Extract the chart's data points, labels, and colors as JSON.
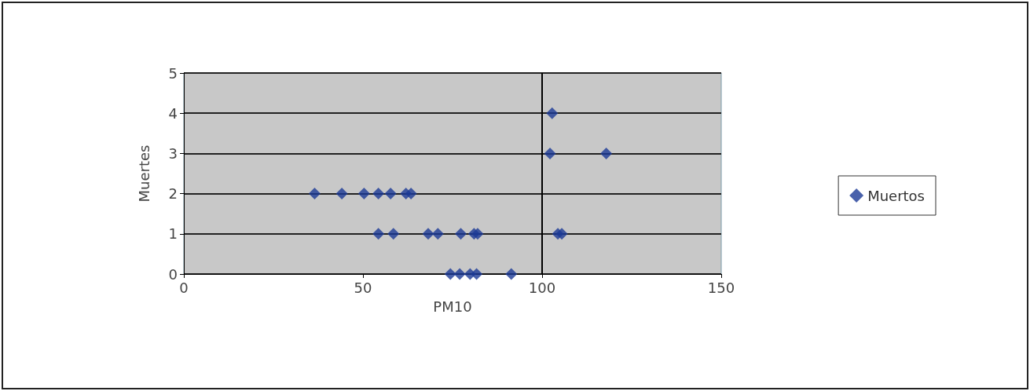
{
  "chart_data": {
    "type": "scatter",
    "xlabel": "PM10",
    "ylabel": "Muertes",
    "series": [
      {
        "name": "Muertos",
        "color": "#1c3a96",
        "x": [
          36.5,
          44.1,
          50.3,
          54.3,
          57.7,
          62.0,
          63.4,
          54.3,
          58.5,
          68.2,
          70.9,
          77.3,
          81.0,
          82.0,
          74.4,
          77.0,
          79.9,
          81.7,
          91.4,
          102.8,
          102.2,
          117.9,
          104.4,
          105.5
        ],
        "values": [
          2,
          2,
          2,
          2,
          2,
          2,
          2,
          1,
          1,
          1,
          1,
          1,
          1,
          1,
          0,
          0,
          0,
          0,
          0,
          4,
          3,
          3,
          1,
          1
        ]
      }
    ],
    "xlim": [
      0,
      150
    ],
    "xticks": [
      0,
      50,
      100,
      150
    ],
    "ylim": [
      0,
      5
    ],
    "yticks": [
      0,
      1,
      2,
      3,
      4,
      5
    ],
    "grid": "y",
    "legend": "right",
    "marker": "diamond",
    "ref_lines": [
      {
        "axis": "x",
        "value": 100,
        "color": "#000000"
      }
    ]
  }
}
